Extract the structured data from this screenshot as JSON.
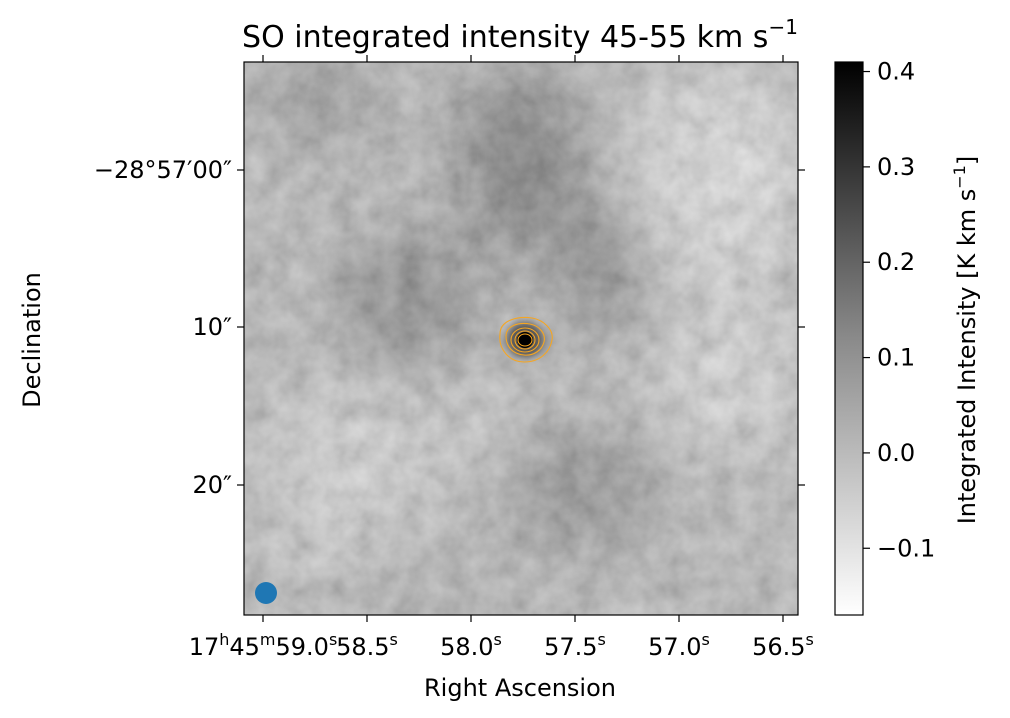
{
  "chart_data": {
    "type": "heatmap",
    "title": "SO integrated intensity 45-55 km s",
    "title_superscript": "−1",
    "xlabel": "Right Ascension",
    "ylabel": "Declination",
    "colormap": "gray_r",
    "grid": false,
    "x_ticks": [
      {
        "base": "17",
        "sup1": "h",
        "mid": "45",
        "sup2": "m",
        "tail": "59.0",
        "sup3": "s"
      },
      {
        "base": "58.5",
        "sup": "s"
      },
      {
        "base": "58.0",
        "sup": "s"
      },
      {
        "base": "57.5",
        "sup": "s"
      },
      {
        "base": "57.0",
        "sup": "s"
      },
      {
        "base": "56.5",
        "sup": "s"
      }
    ],
    "y_ticks": [
      "−28°57′00″",
      "10″",
      "20″"
    ],
    "colorbar": {
      "label": "Integrated Intensity [K km s",
      "label_superscript": "−1",
      "label_close": "]",
      "range": [
        -0.17,
        0.41
      ],
      "ticks": [
        -0.1,
        0.0,
        0.1,
        0.2,
        0.3,
        0.4
      ],
      "tick_labels": [
        "−0.1",
        "0.0",
        "0.1",
        "0.2",
        "0.3",
        "0.4"
      ]
    },
    "features": {
      "peak_source": {
        "ra_offset_s": "57.75",
        "value": 0.4
      },
      "contour_color": "#f5a623",
      "contour_levels": 5,
      "beam_color": "#1f77b4",
      "beam_location": "bottom-left"
    }
  }
}
